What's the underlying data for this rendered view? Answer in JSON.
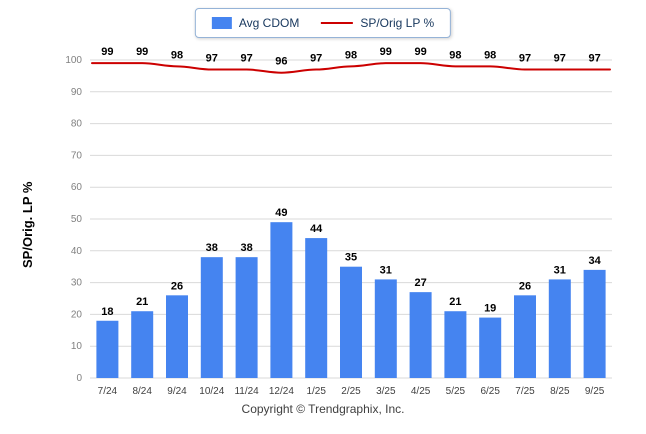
{
  "footer": "Copyright © Trendgraphix, Inc.",
  "chart_data": {
    "type": "bar+line",
    "ylabel": "SP/Orig. LP %",
    "ylim": [
      0,
      100
    ],
    "ytick_step": 10,
    "grid": true,
    "legend_position": "top",
    "categories": [
      "7/24",
      "8/24",
      "9/24",
      "10/24",
      "11/24",
      "12/24",
      "1/25",
      "2/25",
      "3/25",
      "4/25",
      "5/25",
      "6/25",
      "7/25",
      "8/25",
      "9/25"
    ],
    "series": [
      {
        "name": "Avg CDOM",
        "type": "bar",
        "color": "#4584f0",
        "values": [
          18,
          21,
          26,
          38,
          38,
          49,
          44,
          35,
          31,
          27,
          21,
          19,
          26,
          31,
          34
        ]
      },
      {
        "name": "SP/Orig LP %",
        "type": "line",
        "color": "#cc0000",
        "values": [
          99,
          99,
          98,
          97,
          97,
          96,
          97,
          98,
          99,
          99,
          98,
          98,
          97,
          97,
          97
        ]
      }
    ]
  }
}
